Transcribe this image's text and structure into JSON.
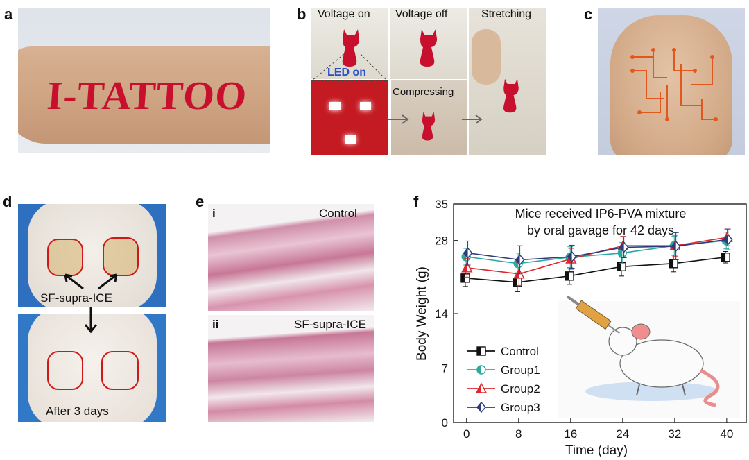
{
  "panels": {
    "a": {
      "letter": "a",
      "tattoo_text": "I-TATTOO"
    },
    "b": {
      "letter": "b",
      "voltage_on": "Voltage on",
      "voltage_off": "Voltage off",
      "stretching": "Stretching",
      "led_on": "LED on",
      "compressing": "Compressing"
    },
    "c": {
      "letter": "c"
    },
    "d": {
      "letter": "d",
      "label_top": "SF-supra-ICE",
      "label_bottom": "After 3 days"
    },
    "e": {
      "letter": "e",
      "sub_i": "i",
      "sub_ii": "ii",
      "control": "Control",
      "treated": "SF-supra-ICE"
    },
    "f": {
      "letter": "f"
    }
  },
  "colors": {
    "tattoo_red": "#c8102e",
    "led_blue": "#2b4fc4",
    "control": "#111111",
    "group1": "#2aa9a0",
    "group2": "#e0262c",
    "group3": "#2e3a7a"
  },
  "chart_data": {
    "type": "line",
    "title": "Mice received IP6-PVA mixture by oral gavage for 42 days",
    "title_lines": [
      "Mice received IP6-PVA mixture",
      "by oral gavage for 42 days"
    ],
    "xlabel": "Time (day)",
    "ylabel": "Body Weight (g)",
    "x": [
      0,
      8,
      16,
      24,
      32,
      40
    ],
    "x_ticks": [
      0,
      8,
      16,
      24,
      32,
      40
    ],
    "y_ticks": [
      0,
      7,
      14,
      28,
      35
    ],
    "xlim": [
      -2,
      43
    ],
    "ylim": [
      0,
      35
    ],
    "legend_position": "bottom-left",
    "series": [
      {
        "name": "Control",
        "color": "#111111",
        "marker": "square",
        "values": [
          20.8,
          20.0,
          21.2,
          23.0,
          23.6,
          24.8
        ],
        "errors": [
          1.6,
          1.8,
          1.6,
          1.8,
          1.6,
          1.1
        ]
      },
      {
        "name": "Group1",
        "color": "#2aa9a0",
        "marker": "circle",
        "values": [
          24.9,
          23.6,
          24.8,
          25.6,
          27.0,
          28.0
        ],
        "errors": [
          1.6,
          2.0,
          2.0,
          2.0,
          1.8,
          1.6
        ]
      },
      {
        "name": "Group2",
        "color": "#e0262c",
        "marker": "triangle",
        "values": [
          22.8,
          21.6,
          24.5,
          27.0,
          27.0,
          28.6
        ],
        "errors": [
          1.8,
          2.2,
          2.0,
          1.8,
          2.0,
          1.6
        ]
      },
      {
        "name": "Group3",
        "color": "#2e3a7a",
        "marker": "diamond",
        "values": [
          25.6,
          24.3,
          24.9,
          26.7,
          26.9,
          28.2
        ],
        "errors": [
          2.3,
          2.7,
          2.2,
          2.0,
          2.6,
          2.0
        ]
      }
    ]
  }
}
